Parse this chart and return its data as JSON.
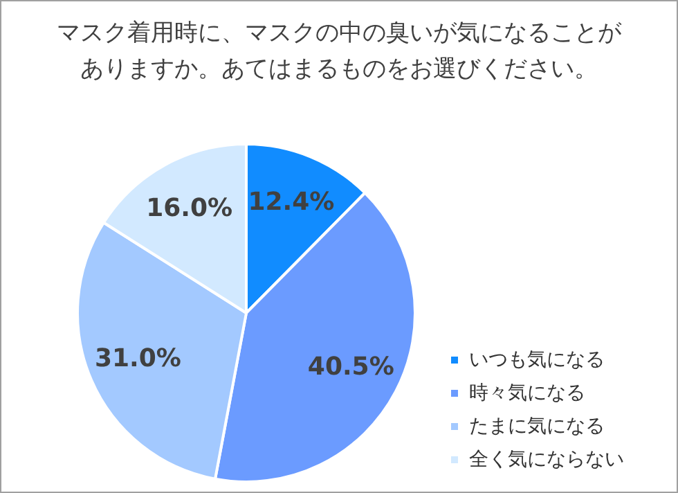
{
  "chart_data": {
    "type": "pie",
    "title": "マスク着用時に、マスクの中の臭いが気になることがありますか。あてはまるものをお選びください。",
    "categories": [
      "いつも気になる",
      "時々気になる",
      "たまに気になる",
      "全く気にならない"
    ],
    "values": [
      12.4,
      40.5,
      31.0,
      16.0
    ],
    "colors": [
      "#118cff",
      "#6b9bff",
      "#a3c9ff",
      "#d2e9ff"
    ],
    "value_labels": [
      "12.4%",
      "40.5%",
      "31.0%",
      "16.0%"
    ],
    "legend": "bottom right"
  }
}
